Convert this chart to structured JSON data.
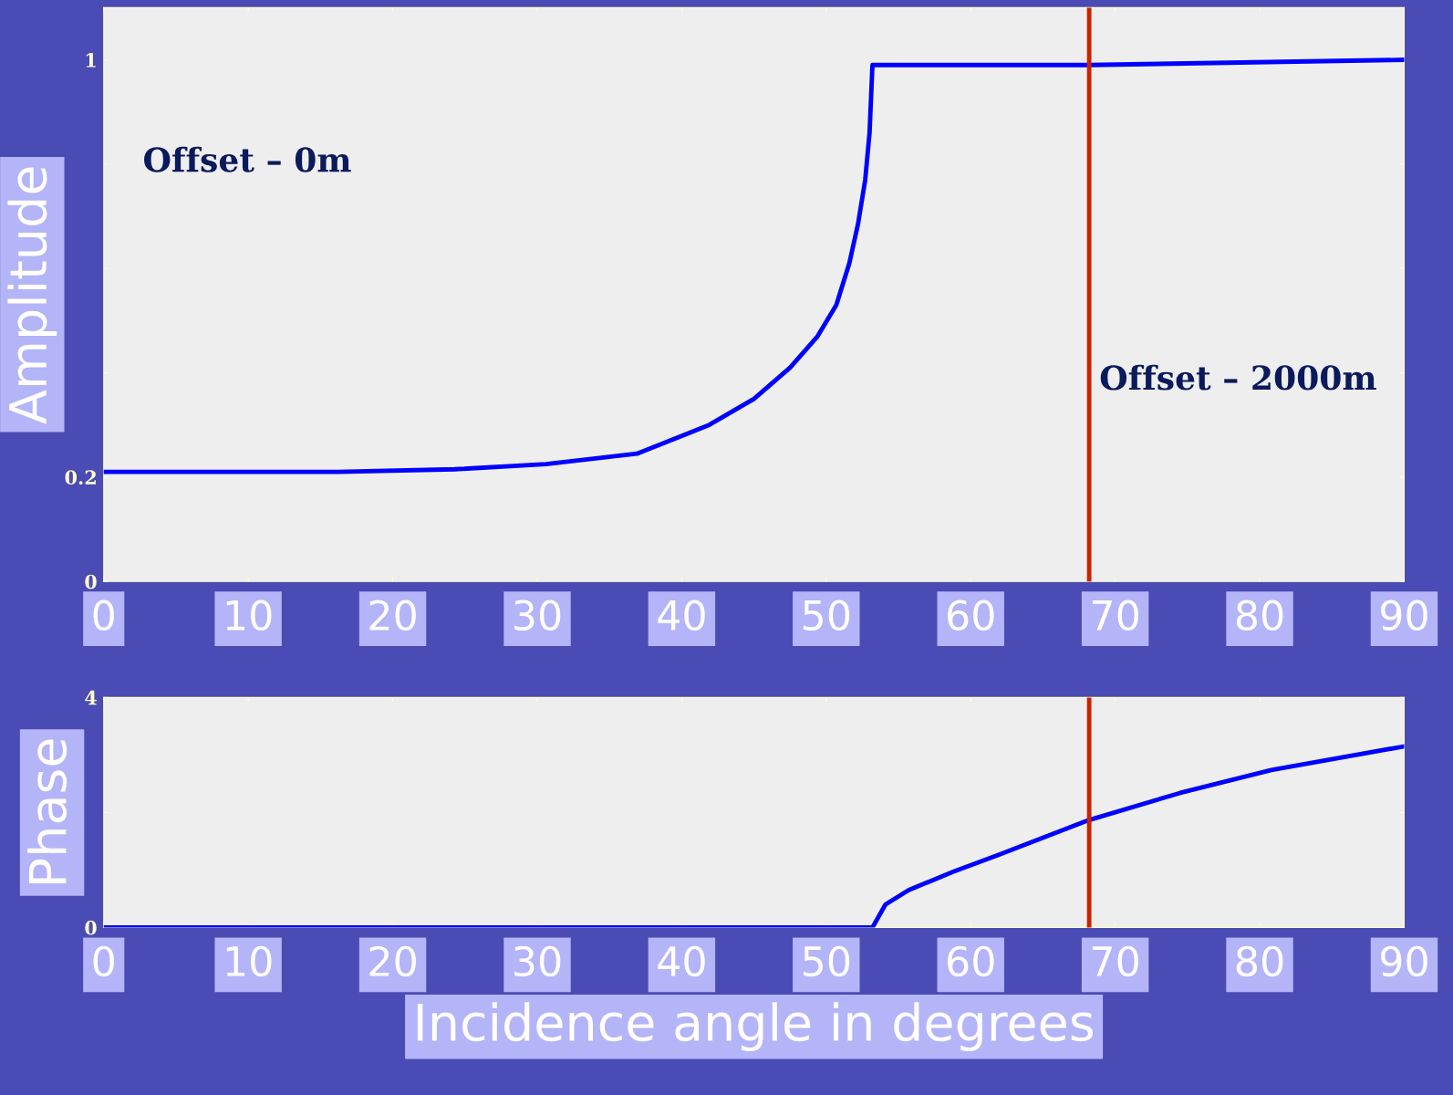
{
  "chart_data": [
    {
      "type": "line",
      "ylabel": "Amplitude",
      "annotations": [
        "Offset – 0m"
      ],
      "x": [
        0,
        16.2,
        24.3,
        30.6,
        36.9,
        41.9,
        45.0,
        47.5,
        49.4,
        50.7,
        51.6,
        52.2,
        52.7,
        53.0,
        53.2,
        68.2,
        90
      ],
      "series": [
        {
          "color": "#0000ff",
          "values": [
            0.21,
            0.21,
            0.215,
            0.225,
            0.245,
            0.3,
            0.35,
            0.41,
            0.47,
            0.53,
            0.61,
            0.685,
            0.77,
            0.86,
            0.99,
            0.99,
            1.0
          ]
        }
      ],
      "xlim": [
        0,
        90
      ],
      "xticks": [
        0,
        10,
        20,
        30,
        40,
        50,
        60,
        70,
        80,
        90
      ],
      "ylim": [
        0,
        1.1
      ],
      "yticks": [
        0,
        0.2,
        {
          "value": 0.4,
          "label": null
        },
        {
          "value": 0.6,
          "label": null
        },
        {
          "value": 0.8,
          "label": null
        },
        1
      ],
      "ref_lines": [
        {
          "axis": "x",
          "value": 68.2,
          "label": "Offset – 2000m",
          "color": "#cc2200"
        }
      ],
      "grid": false,
      "legend": false,
      "marker": "none",
      "line_style": "solid"
    },
    {
      "type": "line",
      "ylabel": "Phase",
      "xlabel": "Incidence angle in degrees",
      "x": [
        0,
        53.2,
        54.1,
        55.7,
        58.8,
        61.9,
        68.2,
        74.5,
        80.8,
        90
      ],
      "series": [
        {
          "color": "#0000ff",
          "values": [
            0,
            0,
            0.4,
            0.65,
            0.97,
            1.26,
            1.87,
            2.34,
            2.74,
            3.15
          ]
        }
      ],
      "xlim": [
        0,
        90
      ],
      "xticks": [
        0,
        10,
        20,
        30,
        40,
        50,
        60,
        70,
        80,
        90
      ],
      "ylim": [
        0,
        4
      ],
      "yticks": [
        0,
        {
          "value": 2,
          "label": null
        },
        4
      ],
      "ref_lines": [
        {
          "axis": "x",
          "value": 68.2,
          "color": "#cc2200"
        }
      ],
      "grid": false,
      "legend": false,
      "marker": "none",
      "line_style": "solid"
    }
  ]
}
